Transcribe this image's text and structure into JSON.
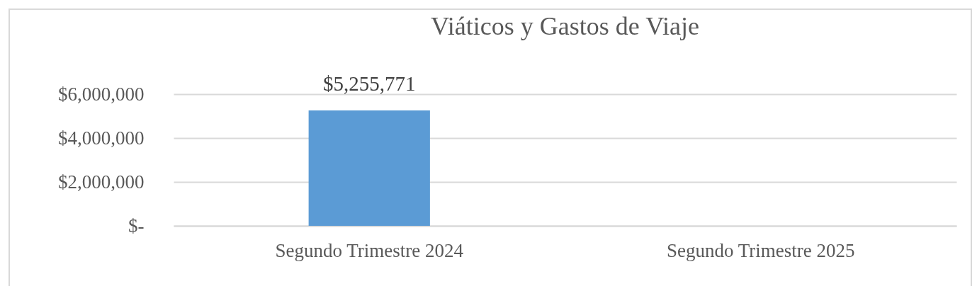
{
  "chart_data": {
    "type": "bar",
    "title": "Viáticos y Gastos de Viaje",
    "categories": [
      "Segundo Trimestre 2024",
      "Segundo Trimestre 2025"
    ],
    "values": [
      5255771,
      null
    ],
    "value_labels": [
      "$5,255,771",
      null
    ],
    "color": "#5b9bd5",
    "ylim": [
      0,
      6000000
    ],
    "yticks": [
      {
        "value": 0,
        "label": "$-"
      },
      {
        "value": 2000000,
        "label": "$2,000,000"
      },
      {
        "value": 4000000,
        "label": "$4,000,000"
      },
      {
        "value": 6000000,
        "label": "$6,000,000"
      }
    ],
    "grid": "y"
  }
}
